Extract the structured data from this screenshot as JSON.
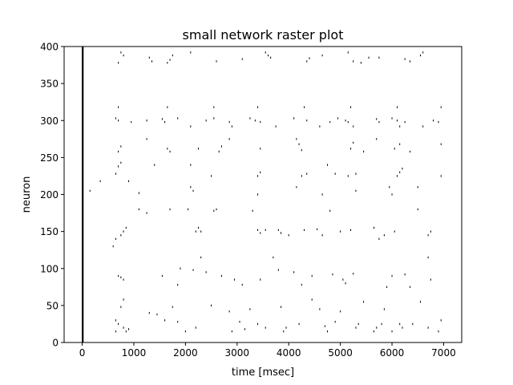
{
  "chart_data": {
    "type": "scatter",
    "title": "small network raster plot",
    "xlabel": "time [msec]",
    "ylabel": "neuron",
    "xlim": [
      -350,
      7350
    ],
    "ylim": [
      0,
      400
    ],
    "xticks": [
      0,
      1000,
      2000,
      3000,
      4000,
      5000,
      6000,
      7000
    ],
    "xtick_labels": [
      "0",
      "1000",
      "2000",
      "3000",
      "4000",
      "5000",
      "6000",
      "7000"
    ],
    "yticks": [
      0,
      50,
      100,
      150,
      200,
      250,
      300,
      350,
      400
    ],
    "ytick_labels": [
      "0",
      "50",
      "100",
      "150",
      "200",
      "250",
      "300",
      "350",
      "400"
    ],
    "grid": false,
    "marker_color": "#000000",
    "initial_burst": {
      "time": 10,
      "neuron_range": [
        0,
        400
      ]
    },
    "series": [
      {
        "values": [
          [
            750,
            392
          ],
          [
            800,
            388
          ],
          [
            1300,
            385
          ],
          [
            1350,
            380
          ],
          [
            1650,
            378
          ],
          [
            1700,
            382
          ],
          [
            1750,
            388
          ],
          [
            2100,
            392
          ],
          [
            2600,
            380
          ],
          [
            3100,
            383
          ],
          [
            3550,
            392
          ],
          [
            3600,
            388
          ],
          [
            3650,
            385
          ],
          [
            4350,
            380
          ],
          [
            4400,
            384
          ],
          [
            4650,
            388
          ],
          [
            5150,
            392
          ],
          [
            5250,
            380
          ],
          [
            5400,
            378
          ],
          [
            5550,
            385
          ],
          [
            5750,
            385
          ],
          [
            6250,
            383
          ],
          [
            6350,
            380
          ],
          [
            6550,
            388
          ],
          [
            6600,
            392
          ],
          [
            700,
            378
          ],
          [
            700,
            318
          ],
          [
            1650,
            318
          ],
          [
            2550,
            318
          ],
          [
            3400,
            318
          ],
          [
            4300,
            318
          ],
          [
            5200,
            318
          ],
          [
            6100,
            318
          ],
          [
            6950,
            318
          ],
          [
            650,
            303
          ],
          [
            700,
            300
          ],
          [
            950,
            298
          ],
          [
            1250,
            300
          ],
          [
            1550,
            302
          ],
          [
            1600,
            298
          ],
          [
            1850,
            303
          ],
          [
            2100,
            292
          ],
          [
            2400,
            300
          ],
          [
            2550,
            303
          ],
          [
            2850,
            298
          ],
          [
            2900,
            292
          ],
          [
            3250,
            303
          ],
          [
            3350,
            300
          ],
          [
            3450,
            298
          ],
          [
            3750,
            292
          ],
          [
            4100,
            303
          ],
          [
            4350,
            300
          ],
          [
            4600,
            292
          ],
          [
            4800,
            298
          ],
          [
            4950,
            303
          ],
          [
            5100,
            300
          ],
          [
            5150,
            298
          ],
          [
            5250,
            292
          ],
          [
            5700,
            302
          ],
          [
            5750,
            298
          ],
          [
            6000,
            303
          ],
          [
            6100,
            300
          ],
          [
            6150,
            292
          ],
          [
            6250,
            298
          ],
          [
            6600,
            292
          ],
          [
            6800,
            300
          ],
          [
            6900,
            298
          ],
          [
            1250,
            275
          ],
          [
            2850,
            275
          ],
          [
            4150,
            275
          ],
          [
            5700,
            275
          ],
          [
            700,
            258
          ],
          [
            750,
            265
          ],
          [
            1650,
            262
          ],
          [
            1700,
            258
          ],
          [
            2250,
            262
          ],
          [
            2650,
            258
          ],
          [
            2700,
            265
          ],
          [
            3450,
            262
          ],
          [
            4200,
            268
          ],
          [
            4250,
            260
          ],
          [
            5200,
            262
          ],
          [
            5250,
            270
          ],
          [
            5450,
            258
          ],
          [
            6050,
            262
          ],
          [
            6150,
            268
          ],
          [
            6350,
            258
          ],
          [
            6950,
            268
          ],
          [
            700,
            238
          ],
          [
            750,
            243
          ],
          [
            1400,
            240
          ],
          [
            2100,
            240
          ],
          [
            2500,
            225
          ],
          [
            3400,
            225
          ],
          [
            3450,
            230
          ],
          [
            4250,
            225
          ],
          [
            4350,
            228
          ],
          [
            4750,
            240
          ],
          [
            4900,
            228
          ],
          [
            5150,
            225
          ],
          [
            5300,
            228
          ],
          [
            6100,
            225
          ],
          [
            6150,
            230
          ],
          [
            6200,
            235
          ],
          [
            6950,
            225
          ],
          [
            650,
            228
          ],
          [
            150,
            205
          ],
          [
            350,
            218
          ],
          [
            900,
            218
          ],
          [
            2100,
            210
          ],
          [
            2150,
            205
          ],
          [
            3400,
            200
          ],
          [
            4150,
            210
          ],
          [
            4650,
            200
          ],
          [
            5300,
            205
          ],
          [
            5950,
            210
          ],
          [
            6000,
            200
          ],
          [
            6500,
            210
          ],
          [
            1100,
            202
          ],
          [
            650,
            140
          ],
          [
            750,
            145
          ],
          [
            800,
            150
          ],
          [
            850,
            155
          ],
          [
            1100,
            180
          ],
          [
            1250,
            175
          ],
          [
            1700,
            180
          ],
          [
            2050,
            180
          ],
          [
            2250,
            155
          ],
          [
            2300,
            150
          ],
          [
            2550,
            178
          ],
          [
            2600,
            180
          ],
          [
            3300,
            178
          ],
          [
            3400,
            152
          ],
          [
            3450,
            148
          ],
          [
            3550,
            152
          ],
          [
            3800,
            152
          ],
          [
            3850,
            148
          ],
          [
            4000,
            145
          ],
          [
            4300,
            152
          ],
          [
            4550,
            153
          ],
          [
            4650,
            145
          ],
          [
            4800,
            178
          ],
          [
            5000,
            150
          ],
          [
            5200,
            152
          ],
          [
            5650,
            155
          ],
          [
            5750,
            140
          ],
          [
            5850,
            145
          ],
          [
            6050,
            150
          ],
          [
            6500,
            180
          ],
          [
            6700,
            145
          ],
          [
            6750,
            150
          ],
          [
            600,
            130
          ],
          [
            2200,
            150
          ],
          [
            700,
            90
          ],
          [
            750,
            88
          ],
          [
            800,
            85
          ],
          [
            1550,
            90
          ],
          [
            1850,
            78
          ],
          [
            2150,
            98
          ],
          [
            2400,
            95
          ],
          [
            2700,
            90
          ],
          [
            2950,
            85
          ],
          [
            3100,
            78
          ],
          [
            3450,
            85
          ],
          [
            3700,
            115
          ],
          [
            3800,
            98
          ],
          [
            4100,
            95
          ],
          [
            4250,
            78
          ],
          [
            4450,
            90
          ],
          [
            4850,
            92
          ],
          [
            5050,
            85
          ],
          [
            5100,
            80
          ],
          [
            5250,
            93
          ],
          [
            5900,
            75
          ],
          [
            6000,
            90
          ],
          [
            6250,
            92
          ],
          [
            6350,
            75
          ],
          [
            6700,
            115
          ],
          [
            6750,
            85
          ],
          [
            1900,
            100
          ],
          [
            2300,
            115
          ],
          [
            650,
            30
          ],
          [
            700,
            25
          ],
          [
            800,
            20
          ],
          [
            850,
            15
          ],
          [
            900,
            18
          ],
          [
            650,
            15
          ],
          [
            750,
            48
          ],
          [
            800,
            58
          ],
          [
            1300,
            40
          ],
          [
            1450,
            38
          ],
          [
            1600,
            30
          ],
          [
            1750,
            48
          ],
          [
            2000,
            15
          ],
          [
            2200,
            20
          ],
          [
            2500,
            50
          ],
          [
            2850,
            42
          ],
          [
            2900,
            15
          ],
          [
            3050,
            28
          ],
          [
            3150,
            18
          ],
          [
            3250,
            45
          ],
          [
            3400,
            25
          ],
          [
            3550,
            20
          ],
          [
            3850,
            48
          ],
          [
            3900,
            15
          ],
          [
            3950,
            20
          ],
          [
            4200,
            25
          ],
          [
            4600,
            45
          ],
          [
            4700,
            22
          ],
          [
            4750,
            15
          ],
          [
            4900,
            28
          ],
          [
            5000,
            42
          ],
          [
            5300,
            20
          ],
          [
            5350,
            25
          ],
          [
            5650,
            15
          ],
          [
            5700,
            20
          ],
          [
            5800,
            25
          ],
          [
            5850,
            45
          ],
          [
            6000,
            15
          ],
          [
            6150,
            25
          ],
          [
            6200,
            20
          ],
          [
            6400,
            25
          ],
          [
            6550,
            55
          ],
          [
            6700,
            20
          ],
          [
            6950,
            30
          ],
          [
            6900,
            15
          ],
          [
            1850,
            28
          ],
          [
            4450,
            58
          ],
          [
            5450,
            55
          ]
        ]
      }
    ]
  }
}
